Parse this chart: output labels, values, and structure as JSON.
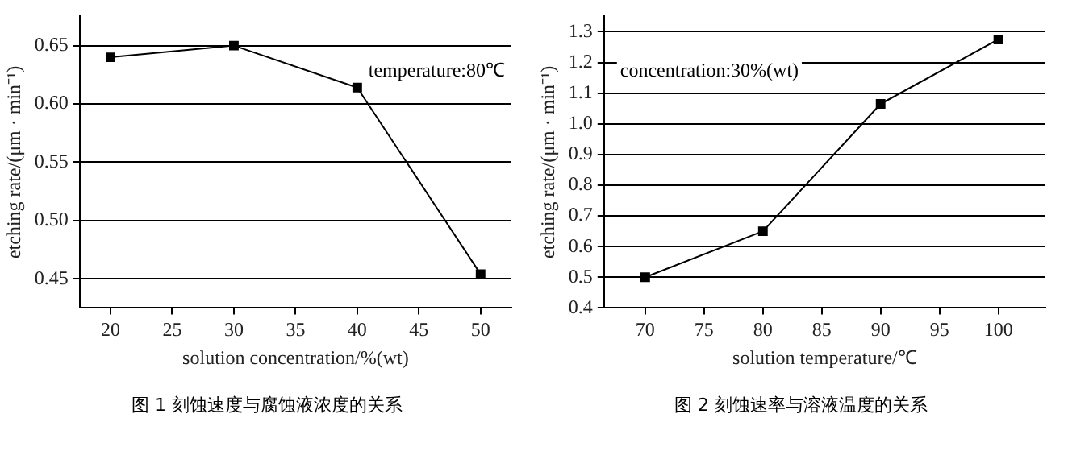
{
  "chart_data": [
    {
      "type": "line",
      "title": "图 1  刻蚀速度与腐蚀液浓度的关系",
      "xlabel": "solution concentration/%(wt)",
      "ylabel": "etching rate/(μm · min⁻¹)",
      "annotations": [
        "temperature:80℃"
      ],
      "x": [
        20,
        30,
        40,
        50
      ],
      "series": [
        {
          "color": "#000000",
          "values": [
            0.64,
            0.65,
            0.614,
            0.454
          ]
        }
      ],
      "xlim": [
        17.5,
        52.5
      ],
      "xticks": [
        20,
        25,
        30,
        35,
        40,
        45,
        50
      ],
      "ylim": [
        0.425,
        0.675
      ],
      "yticks": [
        0.45,
        {
          "value": 0.5,
          "label": "0.50"
        },
        0.55,
        {
          "value": 0.6,
          "label": "0.60"
        },
        0.65
      ],
      "grid": "y",
      "legend": false,
      "marker": "square",
      "line_style": "solid"
    },
    {
      "type": "line",
      "title": "图 2  刻蚀速率与溶液温度的关系",
      "xlabel": "solution temperature/℃",
      "ylabel": "etching rate/(μm · min⁻¹)",
      "annotations": [
        "concentration:30%(wt)"
      ],
      "x": [
        70,
        80,
        90,
        100
      ],
      "series": [
        {
          "color": "#000000",
          "values": [
            0.5,
            0.65,
            1.065,
            1.275
          ]
        }
      ],
      "xlim": [
        66.5,
        104
      ],
      "xticks": [
        70,
        75,
        80,
        85,
        90,
        95,
        100
      ],
      "ylim": [
        0.4,
        1.35
      ],
      "yticks": [
        0.4,
        0.5,
        0.6,
        0.7,
        0.8,
        0.9,
        {
          "value": 1,
          "label": "1.0"
        },
        1.1,
        1.2,
        1.3
      ],
      "grid": "y",
      "legend": false,
      "marker": "square",
      "line_style": "solid"
    }
  ]
}
